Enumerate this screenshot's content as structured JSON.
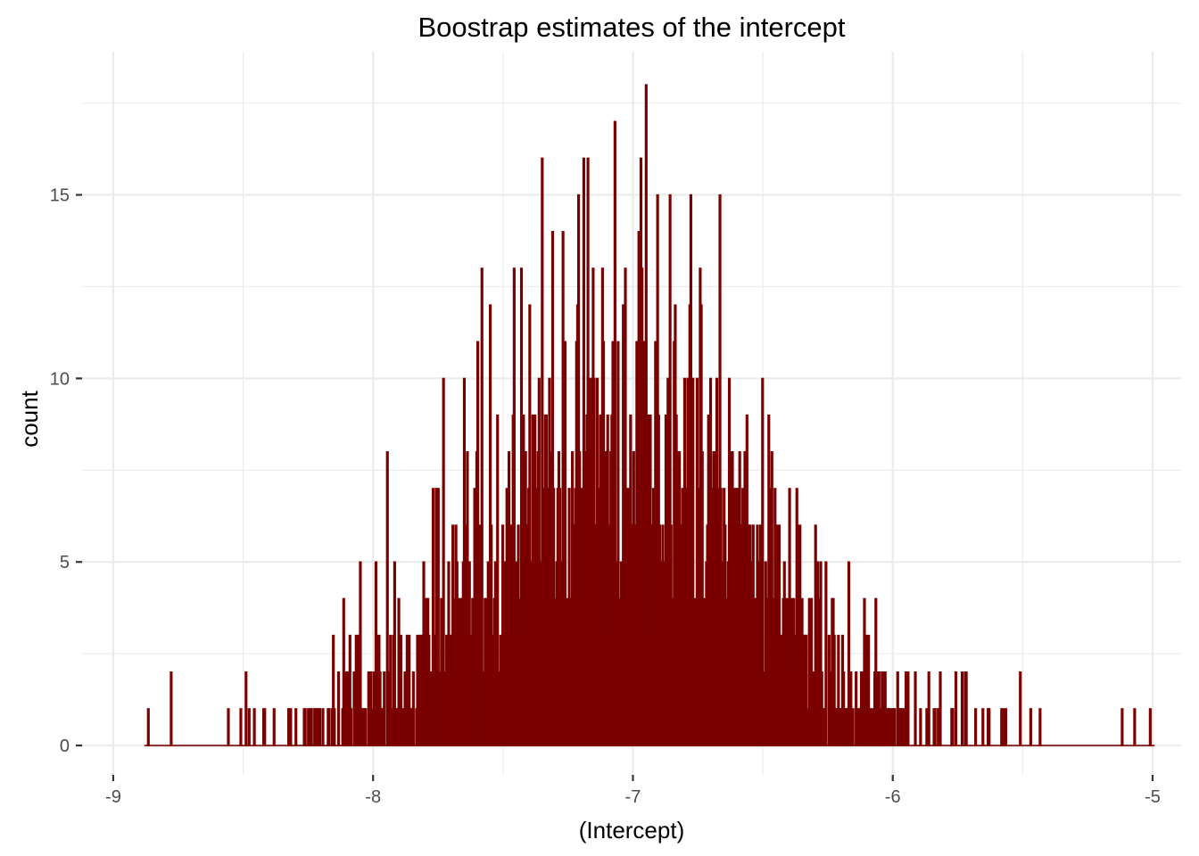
{
  "chart_data": {
    "type": "bar",
    "title": "Boostrap estimates of the intercept",
    "xlabel": "(Intercept)",
    "ylabel": "count",
    "xlim": [
      -9.12,
      -4.89
    ],
    "ylim": [
      -0.8,
      18.9
    ],
    "x_ticks": [
      -9,
      -8,
      -7,
      -6,
      -5
    ],
    "x_tick_labels": [
      "-9",
      "-8",
      "-7",
      "-6",
      "-5"
    ],
    "y_ticks": [
      0,
      5,
      10,
      15
    ],
    "y_tick_labels": [
      "0",
      "5",
      "10",
      "15"
    ],
    "x_minor_ticks": [
      -8.5,
      -7.5,
      -6.5,
      -5.5
    ],
    "y_minor_ticks": [
      2.5,
      7.5,
      12.5,
      17.5
    ],
    "bin_start": -8.88,
    "bin_width": 0.004,
    "bin_count": 972,
    "grid": true,
    "legend": "none",
    "theme": "minimal",
    "distribution": "approximately normal, centered near -7.05",
    "bar_color": "#7a0000",
    "baseline_color": "#8b2a2a",
    "peaks": [
      {
        "x": -6.95,
        "y": 18
      },
      {
        "x": -7.07,
        "y": 17
      },
      {
        "x": -6.97,
        "y": 16
      },
      {
        "x": -7.35,
        "y": 16
      },
      {
        "x": -7.19,
        "y": 16
      },
      {
        "x": -6.86,
        "y": 15
      },
      {
        "x": -7.31,
        "y": 14
      },
      {
        "x": -7.27,
        "y": 14
      },
      {
        "x": -7.21,
        "y": 15
      },
      {
        "x": -6.78,
        "y": 15
      },
      {
        "x": -7.46,
        "y": 13
      },
      {
        "x": -7.12,
        "y": 13
      },
      {
        "x": -7.03,
        "y": 13
      },
      {
        "x": -6.74,
        "y": 12
      },
      {
        "x": -7.4,
        "y": 12
      },
      {
        "x": -7.55,
        "y": 12
      },
      {
        "x": -7.6,
        "y": 11
      }
    ],
    "tail_values": [
      {
        "x": -8.78,
        "y": 2
      },
      {
        "x": -8.49,
        "y": 2
      },
      {
        "x": -8.05,
        "y": 5
      },
      {
        "x": -7.99,
        "y": 5
      },
      {
        "x": -7.77,
        "y": 7
      },
      {
        "x": -7.73,
        "y": 10
      },
      {
        "x": -7.65,
        "y": 10
      },
      {
        "x": -6.4,
        "y": 7
      },
      {
        "x": -6.36,
        "y": 6
      },
      {
        "x": -6.28,
        "y": 5
      },
      {
        "x": -6.17,
        "y": 5
      },
      {
        "x": -6.11,
        "y": 4
      },
      {
        "x": -6.04,
        "y": 2
      },
      {
        "x": -5.95,
        "y": 2
      },
      {
        "x": -5.76,
        "y": 2
      },
      {
        "x": -5.72,
        "y": 2
      },
      {
        "x": -5.51,
        "y": 2
      },
      {
        "x": -5.47,
        "y": 1
      },
      {
        "x": -5.12,
        "y": 1
      },
      {
        "x": -5.01,
        "y": 1
      }
    ]
  }
}
